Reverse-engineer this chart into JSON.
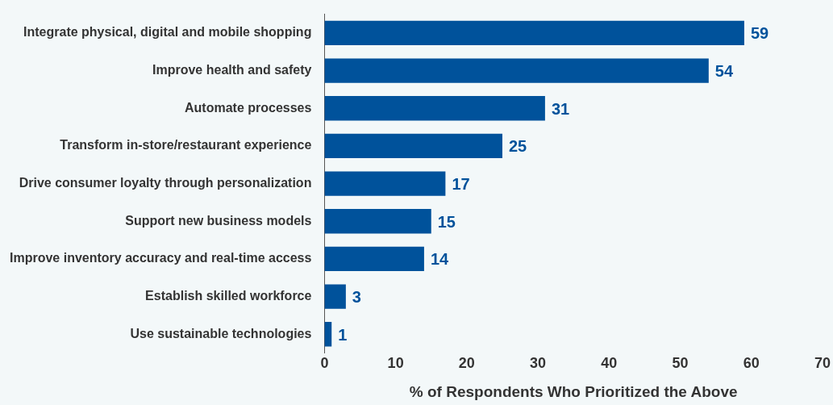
{
  "chart_data": {
    "type": "bar",
    "orientation": "horizontal",
    "xlabel": "% of Respondents Who Prioritized the Above",
    "categories": [
      "Integrate physical, digital and mobile shopping",
      "Improve health and safety",
      "Automate processes",
      "Transform in-store/restaurant experience",
      "Drive consumer loyalty through personalization",
      "Support new business models",
      "Improve inventory accuracy and real-time access",
      "Establish skilled workforce",
      "Use sustainable technologies"
    ],
    "values": [
      59,
      54,
      31,
      25,
      17,
      15,
      14,
      3,
      1
    ],
    "color": "#00529b",
    "xlim": [
      0,
      70
    ],
    "xticks": [
      0,
      10,
      20,
      30,
      40,
      50,
      60,
      70
    ],
    "grid": false,
    "legend": false,
    "data_labels": true
  }
}
